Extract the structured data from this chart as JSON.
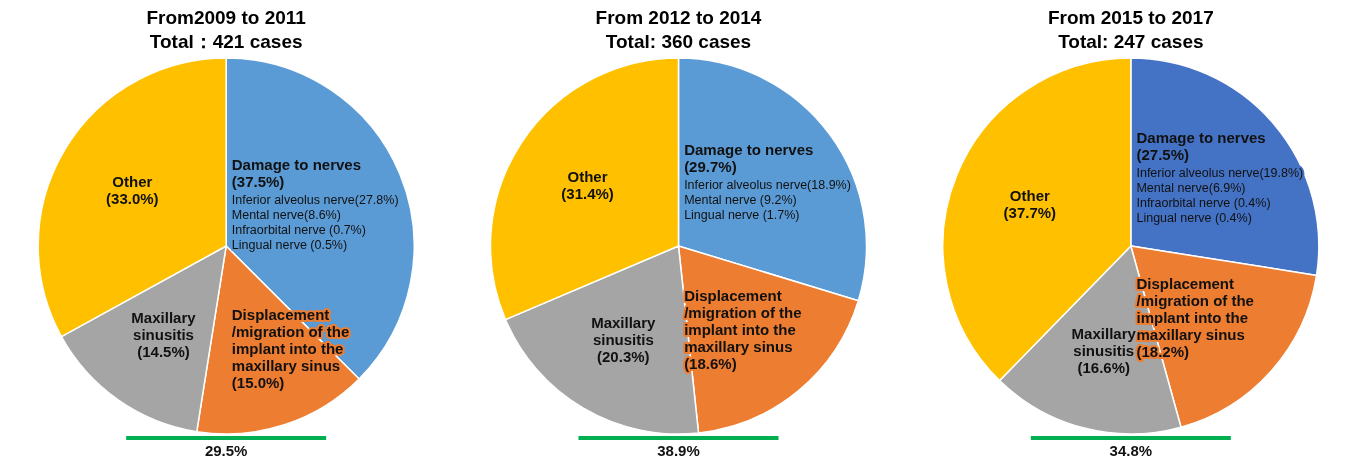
{
  "chart_data": [
    {
      "type": "pie",
      "title": "From2009 to 2011",
      "subtitle": "Total：421 cases",
      "categories": [
        "Damage to nerves",
        "Displacement /migration of the implant into the maxillary sinus",
        "Maxillary sinusitis",
        "Other"
      ],
      "values": [
        37.5,
        15.0,
        14.5,
        33.0
      ],
      "value_labels": [
        "(37.5%)",
        "(15.0%)",
        "(14.5%)",
        "(33.0%)"
      ],
      "colors": [
        "#5b9bd5",
        "#ed7d31",
        "#a5a5a5",
        "#ffc000"
      ],
      "annotations": [
        "Inferior alveolus nerve(27.8%)",
        "Mental nerve(8.6%)",
        "Infraorbital nerve (0.7%)",
        "Lingual nerve (0.5%)",
        "29.5%"
      ]
    },
    {
      "type": "pie",
      "title": "From 2012 to 2014",
      "subtitle": "Total: 360 cases",
      "categories": [
        "Damage to nerves",
        "Displacement /migration of the implant into the maxillary sinus",
        "Maxillary sinusitis",
        "Other"
      ],
      "values": [
        29.7,
        18.6,
        20.3,
        31.4
      ],
      "value_labels": [
        "(29.7%)",
        "(18.6%)",
        "(20.3%)",
        "(31.4%)"
      ],
      "colors": [
        "#5b9bd5",
        "#ed7d31",
        "#a5a5a5",
        "#ffc000"
      ],
      "annotations": [
        "Inferior alveolus nerve(18.9%)",
        "Mental nerve (9.2%)",
        "Lingual nerve (1.7%)",
        "38.9%"
      ]
    },
    {
      "type": "pie",
      "title": "From 2015 to 2017",
      "subtitle": "Total: 247 cases",
      "categories": [
        "Damage to nerves",
        "Displacement /migration of the implant into the maxillary sinus",
        "Maxillary sinusitis",
        "Other"
      ],
      "values": [
        27.5,
        18.2,
        16.6,
        37.7
      ],
      "value_labels": [
        "(27.5%)",
        "(18.2%)",
        "(16.6%)",
        "(37.7%)"
      ],
      "colors": [
        "#4472c4",
        "#ed7d31",
        "#a5a5a5",
        "#ffc000"
      ],
      "annotations": [
        "Inferior alveolus nerve(19.8%)",
        "Mental nerve(6.9%)",
        "Infraorbital nerve (0.4%)",
        "Lingual nerve (0.4%)",
        "34.8%"
      ]
    }
  ]
}
